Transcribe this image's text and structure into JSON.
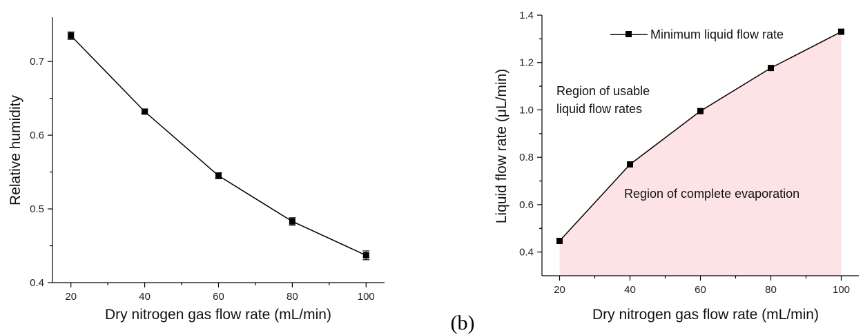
{
  "panel_label": "(b)",
  "chart_data": [
    {
      "type": "line",
      "xlabel": "Dry nitrogen gas flow rate (mL/min)",
      "ylabel": "Relative humidity",
      "x": [
        20,
        40,
        60,
        80,
        100
      ],
      "xlim": [
        15,
        105
      ],
      "ylim": [
        0.4,
        0.76
      ],
      "xticks": [
        "20",
        "40",
        "60",
        "80",
        "100"
      ],
      "yticks": [
        "0.4",
        "0.5",
        "0.6",
        "0.7"
      ],
      "series": [
        {
          "values": [
            0.735,
            0.632,
            0.545,
            0.483,
            0.437
          ],
          "errors": [
            0.005,
            0.003,
            0.004,
            0.005,
            0.006
          ],
          "color": "#000000",
          "marker": "square"
        }
      ],
      "grid": false
    },
    {
      "type": "area",
      "xlabel": "Dry nitrogen gas flow rate (mL/min)",
      "ylabel": "Liquid flow rate (μL/min)",
      "x": [
        20,
        40,
        60,
        80,
        100
      ],
      "xlim": [
        15,
        105
      ],
      "ylim": [
        0.3,
        1.4
      ],
      "xticks": [
        "20",
        "40",
        "60",
        "80",
        "100"
      ],
      "yticks": [
        "0.4",
        "0.6",
        "0.8",
        "1.0",
        "1.2",
        "1.4"
      ],
      "series": [
        {
          "name": "Minimum liquid flow rate",
          "values": [
            0.447,
            0.77,
            0.995,
            1.177,
            1.33
          ],
          "color": "#000000",
          "marker": "square",
          "fill_color": "#fde3e6"
        }
      ],
      "legend": "top-right",
      "annotations": {
        "upper_region": [
          "Region of usable",
          "liquid flow rates"
        ],
        "lower_region": "Region of complete evaporation"
      },
      "grid": false
    }
  ]
}
